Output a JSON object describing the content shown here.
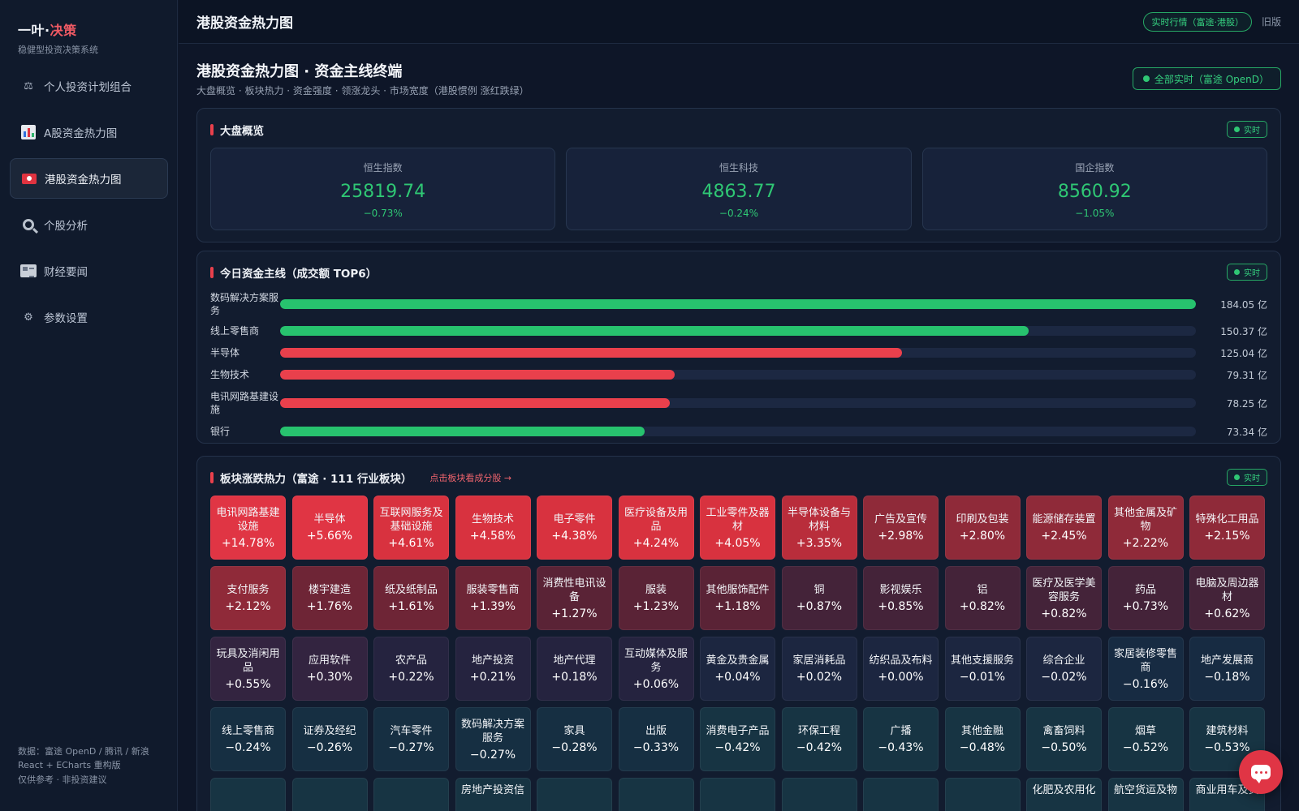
{
  "brand": {
    "title_a": "一叶·",
    "title_b": "决策",
    "subtitle": "稳健型投资决策系统"
  },
  "nav": [
    {
      "label": "个人投资计划组合",
      "icon": "scale-icon",
      "active": false
    },
    {
      "label": "A股资金热力图",
      "icon": "bar-chart-icon",
      "active": false
    },
    {
      "label": "港股资金热力图",
      "icon": "hk-flag-icon",
      "active": true
    },
    {
      "label": "个股分析",
      "icon": "search-icon",
      "active": false
    },
    {
      "label": "财经要闻",
      "icon": "newspaper-icon",
      "active": false
    },
    {
      "label": "参数设置",
      "icon": "gear-icon",
      "active": false
    }
  ],
  "footer": {
    "line1": "数据：富途 OpenD / 腾讯 / 新浪",
    "line2": "React + ECharts 重构版",
    "line3": "仅供参考 · 非投资建议"
  },
  "topbar": {
    "title": "港股资金热力图",
    "live_pill": "实时行情（富途·港股）",
    "old_version": "旧版"
  },
  "page": {
    "title": "港股资金热力图 · 资金主线终端",
    "subtitle": "大盘概览 · 板块热力 · 资金强度 · 领涨龙头 · 市场宽度（港股惯例 涨红跌绿）",
    "status_pill": "全部实时（富途 OpenD）"
  },
  "overview": {
    "title": "大盘概览",
    "badge": "实时",
    "indices": [
      {
        "name": "恒生指数",
        "value": "25819.74",
        "change": "−0.73%"
      },
      {
        "name": "恒生科技",
        "value": "4863.77",
        "change": "−0.24%"
      },
      {
        "name": "国企指数",
        "value": "8560.92",
        "change": "−1.05%"
      }
    ]
  },
  "flow": {
    "title": "今日资金主线（成交额 TOP6）",
    "badge": "实时",
    "max": 184.05,
    "items": [
      {
        "name": "数码解决方案服务",
        "amount": 184.05,
        "amount_text": "184.05 亿",
        "direction": "down"
      },
      {
        "name": "线上零售商",
        "amount": 150.37,
        "amount_text": "150.37 亿",
        "direction": "down"
      },
      {
        "name": "半导体",
        "amount": 125.04,
        "amount_text": "125.04 亿",
        "direction": "up"
      },
      {
        "name": "生物技术",
        "amount": 79.31,
        "amount_text": "79.31 亿",
        "direction": "up"
      },
      {
        "name": "电讯网路基建设施",
        "amount": 78.25,
        "amount_text": "78.25 亿",
        "direction": "up"
      },
      {
        "name": "银行",
        "amount": 73.34,
        "amount_text": "73.34 亿",
        "direction": "down"
      }
    ]
  },
  "heatmap": {
    "title": "板块涨跌热力（富途 · 111 行业板块）",
    "link": "点击板块看成分股 →",
    "badge": "实时",
    "tiles": [
      {
        "name": "电讯网路基建设施",
        "change": 14.78,
        "change_text": "+14.78%"
      },
      {
        "name": "半导体",
        "change": 5.66,
        "change_text": "+5.66%"
      },
      {
        "name": "互联网服务及基础设施",
        "change": 4.61,
        "change_text": "+4.61%"
      },
      {
        "name": "生物技术",
        "change": 4.58,
        "change_text": "+4.58%"
      },
      {
        "name": "电子零件",
        "change": 4.38,
        "change_text": "+4.38%"
      },
      {
        "name": "医疗设备及用品",
        "change": 4.24,
        "change_text": "+4.24%"
      },
      {
        "name": "工业零件及器材",
        "change": 4.05,
        "change_text": "+4.05%"
      },
      {
        "name": "半导体设备与材料",
        "change": 3.35,
        "change_text": "+3.35%"
      },
      {
        "name": "广告及宣传",
        "change": 2.98,
        "change_text": "+2.98%"
      },
      {
        "name": "印刷及包装",
        "change": 2.8,
        "change_text": "+2.80%"
      },
      {
        "name": "能源储存装置",
        "change": 2.45,
        "change_text": "+2.45%"
      },
      {
        "name": "其他金属及矿物",
        "change": 2.22,
        "change_text": "+2.22%"
      },
      {
        "name": "特殊化工用品",
        "change": 2.15,
        "change_text": "+2.15%"
      },
      {
        "name": "支付服务",
        "change": 2.12,
        "change_text": "+2.12%"
      },
      {
        "name": "楼宇建造",
        "change": 1.76,
        "change_text": "+1.76%"
      },
      {
        "name": "纸及纸制品",
        "change": 1.61,
        "change_text": "+1.61%"
      },
      {
        "name": "服装零售商",
        "change": 1.39,
        "change_text": "+1.39%"
      },
      {
        "name": "消费性电讯设备",
        "change": 1.27,
        "change_text": "+1.27%"
      },
      {
        "name": "服装",
        "change": 1.23,
        "change_text": "+1.23%"
      },
      {
        "name": "其他服饰配件",
        "change": 1.18,
        "change_text": "+1.18%"
      },
      {
        "name": "铜",
        "change": 0.87,
        "change_text": "+0.87%"
      },
      {
        "name": "影视娱乐",
        "change": 0.85,
        "change_text": "+0.85%"
      },
      {
        "name": "铝",
        "change": 0.82,
        "change_text": "+0.82%"
      },
      {
        "name": "医疗及医学美容服务",
        "change": 0.82,
        "change_text": "+0.82%"
      },
      {
        "name": "药品",
        "change": 0.73,
        "change_text": "+0.73%"
      },
      {
        "name": "电脑及周边器材",
        "change": 0.62,
        "change_text": "+0.62%"
      },
      {
        "name": "玩具及消闲用品",
        "change": 0.55,
        "change_text": "+0.55%"
      },
      {
        "name": "应用软件",
        "change": 0.3,
        "change_text": "+0.30%"
      },
      {
        "name": "农产品",
        "change": 0.22,
        "change_text": "+0.22%"
      },
      {
        "name": "地产投资",
        "change": 0.21,
        "change_text": "+0.21%"
      },
      {
        "name": "地产代理",
        "change": 0.18,
        "change_text": "+0.18%"
      },
      {
        "name": "互动媒体及服务",
        "change": 0.06,
        "change_text": "+0.06%"
      },
      {
        "name": "黄金及贵金属",
        "change": 0.04,
        "change_text": "+0.04%"
      },
      {
        "name": "家居消耗品",
        "change": 0.02,
        "change_text": "+0.02%"
      },
      {
        "name": "纺织品及布料",
        "change": 0.0,
        "change_text": "+0.00%"
      },
      {
        "name": "其他支援服务",
        "change": -0.01,
        "change_text": "−0.01%"
      },
      {
        "name": "综合企业",
        "change": -0.02,
        "change_text": "−0.02%"
      },
      {
        "name": "家居装修零售商",
        "change": -0.16,
        "change_text": "−0.16%"
      },
      {
        "name": "地产发展商",
        "change": -0.18,
        "change_text": "−0.18%"
      },
      {
        "name": "线上零售商",
        "change": -0.24,
        "change_text": "−0.24%"
      },
      {
        "name": "证券及经纪",
        "change": -0.26,
        "change_text": "−0.26%"
      },
      {
        "name": "汽车零件",
        "change": -0.27,
        "change_text": "−0.27%"
      },
      {
        "name": "数码解决方案服务",
        "change": -0.27,
        "change_text": "−0.27%"
      },
      {
        "name": "家具",
        "change": -0.28,
        "change_text": "−0.28%"
      },
      {
        "name": "出版",
        "change": -0.33,
        "change_text": "−0.33%"
      },
      {
        "name": "消费电子产品",
        "change": -0.42,
        "change_text": "−0.42%"
      },
      {
        "name": "环保工程",
        "change": -0.42,
        "change_text": "−0.42%"
      },
      {
        "name": "广播",
        "change": -0.43,
        "change_text": "−0.43%"
      },
      {
        "name": "其他金融",
        "change": -0.48,
        "change_text": "−0.48%"
      },
      {
        "name": "禽畜饲料",
        "change": -0.5,
        "change_text": "−0.50%"
      },
      {
        "name": "烟草",
        "change": -0.52,
        "change_text": "−0.52%"
      },
      {
        "name": "建筑材料",
        "change": -0.53,
        "change_text": "−0.53%"
      }
    ],
    "partial_row": [
      {
        "name": "房地产投资信"
      },
      {
        "name": "化肥及农用化"
      },
      {
        "name": "航空货运及物"
      },
      {
        "name": "商业用车及货"
      }
    ]
  },
  "colors": {
    "up": "#e9404c",
    "down": "#27c26e",
    "accent": "#35d07f"
  },
  "chat_button": {
    "icon": "chat-icon"
  }
}
